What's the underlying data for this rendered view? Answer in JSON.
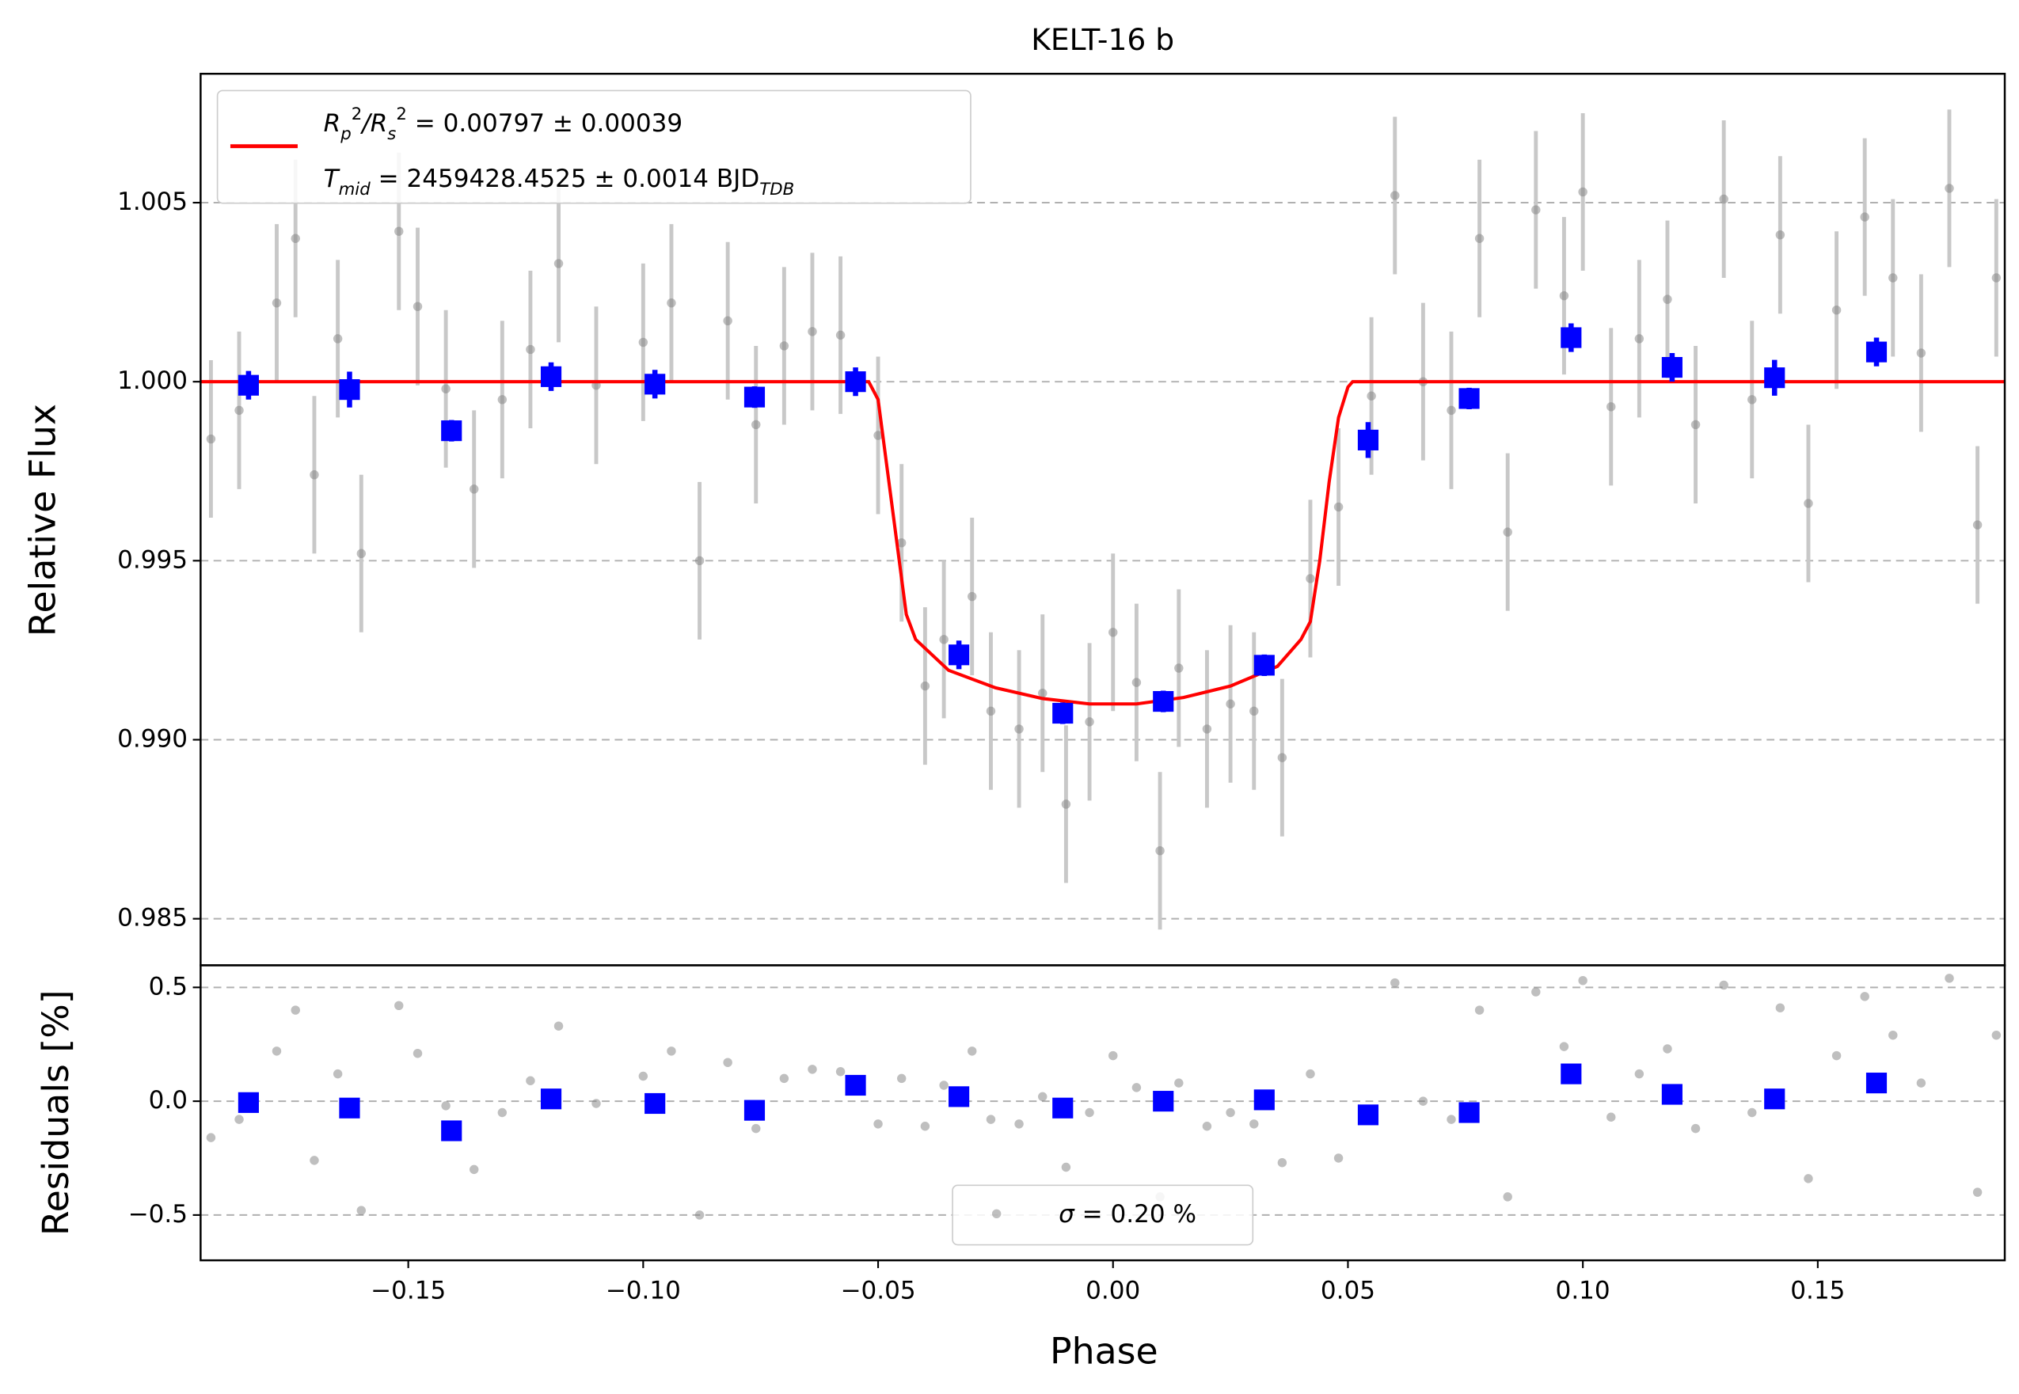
{
  "chart_data": [
    {
      "type": "scatter",
      "title": "KELT-16 b",
      "ylabel": "Relative Flux",
      "xlim": [
        -0.1942,
        0.1898
      ],
      "ylim": [
        0.9837,
        1.0086
      ],
      "yticks": [
        0.985,
        {
          "value": 0.99,
          "label": "0.990"
        },
        0.995,
        {
          "value": 1.0,
          "label": "1.000"
        },
        1.005
      ],
      "grid": true,
      "points": {
        "color": "#808080",
        "error_color": "#c8c8c8",
        "yerr": 0.0022,
        "x": [
          -0.192,
          -0.186,
          -0.178,
          -0.174,
          -0.17,
          -0.165,
          -0.16,
          -0.152,
          -0.148,
          -0.142,
          -0.136,
          -0.13,
          -0.124,
          -0.118,
          -0.11,
          -0.1,
          -0.094,
          -0.088,
          -0.082,
          -0.076,
          -0.07,
          -0.064,
          -0.058,
          -0.05,
          -0.045,
          -0.04,
          -0.036,
          -0.03,
          -0.026,
          -0.02,
          -0.015,
          -0.01,
          -0.005,
          0,
          0.005,
          0.01,
          0.014,
          0.02,
          0.025,
          0.03,
          0.036,
          0.042,
          0.048,
          0.055,
          0.06,
          0.066,
          0.072,
          0.078,
          0.084,
          0.09,
          0.096,
          0.1,
          0.106,
          0.112,
          0.118,
          0.124,
          0.13,
          0.136,
          0.142,
          0.148,
          0.154,
          0.16,
          0.166,
          0.172,
          0.178,
          0.184,
          0.188
        ],
        "values": [
          0.9984,
          0.9992,
          1.0022,
          1.004,
          0.9974,
          1.0012,
          0.9952,
          1.0042,
          1.0021,
          0.9998,
          0.997,
          0.9995,
          1.0009,
          1.0033,
          0.9999,
          1.0011,
          1.0022,
          0.995,
          1.0017,
          0.9988,
          1.001,
          1.0014,
          1.0013,
          0.9985,
          0.9955,
          0.9915,
          0.9928,
          0.994,
          0.9908,
          0.9903,
          0.9913,
          0.9882,
          0.9905,
          0.993,
          0.9916,
          0.9869,
          0.992,
          0.9903,
          0.991,
          0.9908,
          0.9895,
          0.9945,
          0.9965,
          0.9996,
          1.0052,
          1.0,
          0.9992,
          1.004,
          0.9958,
          1.0048,
          1.0024,
          1.0053,
          0.9993,
          1.0012,
          1.0023,
          0.9988,
          1.0051,
          0.9995,
          1.0041,
          0.9966,
          1.002,
          1.0046,
          1.0029,
          1.0008,
          1.0054,
          0.996,
          1.0029
        ]
      },
      "binned": {
        "color": "#0000ff",
        "x": [
          -0.184,
          -0.1625,
          -0.1408,
          -0.1196,
          -0.0975,
          -0.0763,
          -0.0548,
          -0.0328,
          -0.0107,
          0.0107,
          0.0322,
          0.0543,
          0.0758,
          0.0975,
          0.119,
          0.1408,
          0.1625
        ],
        "values": [
          0.9999,
          0.99978,
          0.99863,
          1.00014,
          0.99993,
          0.99957,
          1.0,
          0.99237,
          0.99074,
          0.99107,
          0.99208,
          0.99837,
          0.99953,
          1.00123,
          1.0004,
          1.00011,
          1.00083
        ],
        "yerr": [
          0.0004,
          0.0005,
          0.0003,
          0.0004,
          0.0004,
          0.0003,
          0.0004,
          0.0004,
          0.0003,
          0.0003,
          0.0003,
          0.0005,
          0.0003,
          0.0004,
          0.0004,
          0.0005,
          0.0004
        ]
      },
      "model": {
        "color": "#ff0000",
        "name": [
          "R",
          "p",
          "2",
          "/R",
          "s",
          "2",
          " = 0.00797 ± 0.00039"
        ],
        "name2": [
          "T",
          "mid",
          " = 2459428.4525 ± 0.0014 BJD",
          "TDB"
        ],
        "x": [
          -0.1942,
          -0.052,
          -0.05,
          -0.048,
          -0.046,
          -0.044,
          -0.042,
          -0.035,
          -0.025,
          -0.015,
          -0.005,
          0.005,
          0.015,
          0.025,
          0.035,
          0.04,
          0.042,
          0.044,
          0.046,
          0.048,
          0.05,
          0.051,
          0.1898
        ],
        "values": [
          1.0,
          1.0,
          0.9995,
          0.9975,
          0.9955,
          0.9935,
          0.9928,
          0.99194,
          0.99145,
          0.99115,
          0.991,
          0.991,
          0.99118,
          0.9915,
          0.99205,
          0.9928,
          0.9933,
          0.995,
          0.9972,
          0.999,
          0.99985,
          1.0,
          1.0
        ]
      }
    },
    {
      "type": "scatter",
      "ylabel": "Residuals [%]",
      "xlabel": "Phase",
      "xlim": [
        -0.1942,
        0.1898
      ],
      "ylim": [
        -0.699,
        0.597
      ],
      "xticks": [
        {
          "value": -0.15,
          "label": "−0.15"
        },
        {
          "value": -0.1,
          "label": "−0.10"
        },
        {
          "value": -0.05,
          "label": "−0.05"
        },
        {
          "value": 0,
          "label": "0.00"
        },
        {
          "value": 0.05,
          "label": "0.05"
        },
        {
          "value": 0.1,
          "label": "0.10"
        },
        {
          "value": 0.15,
          "label": "0.15"
        }
      ],
      "yticks": [
        {
          "value": -0.5,
          "label": "−0.5"
        },
        {
          "value": 0,
          "label": "0.0"
        },
        0.5
      ],
      "grid": true,
      "points": {
        "color": "#808080",
        "name": [
          "σ",
          " = 0.20 %"
        ],
        "x": [
          -0.192,
          -0.186,
          -0.178,
          -0.174,
          -0.17,
          -0.165,
          -0.16,
          -0.152,
          -0.148,
          -0.142,
          -0.136,
          -0.13,
          -0.124,
          -0.118,
          -0.11,
          -0.1,
          -0.094,
          -0.088,
          -0.082,
          -0.076,
          -0.07,
          -0.064,
          -0.058,
          -0.05,
          -0.045,
          -0.04,
          -0.036,
          -0.03,
          -0.026,
          -0.02,
          -0.015,
          -0.01,
          -0.005,
          0,
          0.005,
          0.01,
          0.014,
          0.02,
          0.025,
          0.03,
          0.036,
          0.042,
          0.048,
          0.055,
          0.06,
          0.066,
          0.072,
          0.078,
          0.084,
          0.09,
          0.096,
          0.1,
          0.106,
          0.112,
          0.118,
          0.124,
          0.13,
          0.136,
          0.142,
          0.148,
          0.154,
          0.16,
          0.166,
          0.172,
          0.178,
          0.184,
          0.188
        ],
        "values": [
          -0.16,
          -0.08,
          0.22,
          0.4,
          -0.26,
          0.12,
          -0.48,
          0.42,
          0.21,
          -0.02,
          -0.3,
          -0.05,
          0.09,
          0.33,
          -0.01,
          0.11,
          0.22,
          -0.5,
          0.17,
          -0.12,
          0.1,
          0.14,
          0.13,
          -0.1,
          0.1,
          -0.11,
          0.07,
          0.22,
          -0.08,
          -0.1,
          0.02,
          -0.29,
          -0.05,
          0.2,
          0.06,
          -0.42,
          0.08,
          -0.11,
          -0.05,
          -0.1,
          -0.27,
          0.12,
          -0.25,
          -0.04,
          0.52,
          0,
          -0.08,
          0.4,
          -0.42,
          0.48,
          0.24,
          0.53,
          -0.07,
          0.12,
          0.23,
          -0.12,
          0.51,
          -0.05,
          0.41,
          -0.34,
          0.2,
          0.46,
          0.29,
          0.08,
          0.54,
          -0.4,
          0.29
        ]
      },
      "binned": {
        "color": "#0000ff",
        "x": [
          -0.184,
          -0.1625,
          -0.1408,
          -0.1196,
          -0.0975,
          -0.0763,
          -0.0548,
          -0.0328,
          -0.0107,
          0.0107,
          0.0322,
          0.0543,
          0.0758,
          0.0975,
          0.119,
          0.1408,
          0.1625
        ],
        "values": [
          -0.006,
          -0.03,
          -0.13,
          0.01,
          -0.01,
          -0.04,
          0.07,
          0.02,
          -0.03,
          0.0,
          0.006,
          -0.06,
          -0.05,
          0.12,
          0.03,
          0.01,
          0.08
        ]
      }
    }
  ]
}
